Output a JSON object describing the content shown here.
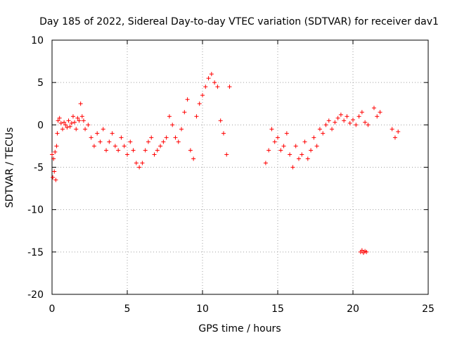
{
  "chart_data": {
    "type": "scatter",
    "title": "Day 185 of 2022, Sidereal Day-to-day VTEC variation (SDTVAR) for receiver dav1",
    "xlabel": "GPS time / hours",
    "ylabel": "SDTVAR / TECUs",
    "xlim": [
      0,
      25
    ],
    "ylim": [
      -20,
      10
    ],
    "xticks": [
      0,
      5,
      10,
      15,
      20,
      25
    ],
    "yticks": [
      -20,
      -15,
      -10,
      -5,
      0,
      5,
      10
    ],
    "xtick_labels": [
      "0",
      "5",
      "10",
      "15",
      "20",
      "25"
    ],
    "ytick_labels": [
      "-20",
      "-15",
      "-10",
      "-5",
      "0",
      "5",
      "10"
    ],
    "grid": true,
    "marker": "+",
    "series": [
      {
        "name": "SDTVAR",
        "color": "#ff0000",
        "x": [
          0.0,
          0.05,
          0.1,
          0.15,
          0.2,
          0.25,
          0.3,
          0.35,
          0.4,
          0.5,
          0.6,
          0.7,
          0.8,
          0.9,
          1.0,
          1.1,
          1.2,
          1.3,
          1.4,
          1.5,
          1.6,
          1.7,
          1.8,
          1.9,
          2.0,
          2.1,
          2.2,
          2.4,
          2.6,
          2.8,
          3.0,
          3.2,
          3.4,
          3.6,
          3.8,
          4.0,
          4.2,
          4.4,
          4.6,
          4.8,
          5.0,
          5.2,
          5.4,
          5.6,
          5.8,
          6.0,
          6.2,
          6.4,
          6.6,
          6.8,
          7.0,
          7.2,
          7.4,
          7.6,
          7.8,
          8.0,
          8.2,
          8.4,
          8.6,
          8.8,
          9.0,
          9.2,
          9.4,
          9.6,
          9.8,
          10.0,
          10.2,
          10.4,
          10.6,
          10.8,
          11.0,
          11.2,
          11.4,
          11.6,
          11.8,
          14.2,
          14.4,
          14.6,
          14.8,
          15.0,
          15.2,
          15.4,
          15.6,
          15.8,
          16.0,
          16.2,
          16.4,
          16.6,
          16.8,
          17.0,
          17.2,
          17.4,
          17.6,
          17.8,
          18.0,
          18.2,
          18.4,
          18.6,
          18.8,
          19.0,
          19.2,
          19.4,
          19.6,
          19.8,
          20.0,
          20.2,
          20.4,
          20.6,
          20.8,
          21.0,
          21.4,
          21.6,
          21.8,
          22.6,
          22.8,
          23.0,
          20.5,
          20.6,
          20.7,
          20.8,
          20.9
        ],
        "y": [
          -3.5,
          -6.2,
          -4.0,
          -5.5,
          -3.2,
          -6.5,
          -2.5,
          -1.0,
          0.5,
          0.8,
          0.2,
          -0.5,
          0.3,
          0.0,
          -0.3,
          0.5,
          -0.2,
          0.2,
          1.0,
          0.3,
          -0.5,
          0.8,
          0.5,
          2.5,
          1.0,
          0.5,
          -0.5,
          0.0,
          -1.5,
          -2.5,
          -1.0,
          -2.0,
          -0.5,
          -3.0,
          -2.0,
          -1.0,
          -2.5,
          -3.0,
          -1.5,
          -2.5,
          -3.5,
          -2.0,
          -3.0,
          -4.5,
          -5.0,
          -4.5,
          -3.0,
          -2.0,
          -1.5,
          -3.5,
          -3.0,
          -2.5,
          -2.0,
          -1.5,
          1.0,
          0.0,
          -1.5,
          -2.0,
          -0.5,
          1.5,
          3.0,
          -3.0,
          -4.0,
          1.0,
          2.5,
          3.5,
          4.5,
          5.5,
          6.0,
          5.0,
          4.5,
          0.5,
          -1.0,
          -3.5,
          4.5,
          -4.5,
          -3.0,
          -0.5,
          -2.0,
          -1.5,
          -3.0,
          -2.5,
          -1.0,
          -3.5,
          -5.0,
          -2.5,
          -4.0,
          -3.5,
          -2.0,
          -4.0,
          -3.0,
          -1.5,
          -2.5,
          -0.5,
          -1.0,
          0.0,
          0.5,
          -0.5,
          0.3,
          0.8,
          1.2,
          0.5,
          1.0,
          0.2,
          0.6,
          0.0,
          1.0,
          1.5,
          0.3,
          0.0,
          2.0,
          1.0,
          1.5,
          -0.5,
          -1.5,
          -0.8,
          -15.0,
          -14.8,
          -15.1,
          -14.9,
          -15.0
        ]
      }
    ]
  }
}
